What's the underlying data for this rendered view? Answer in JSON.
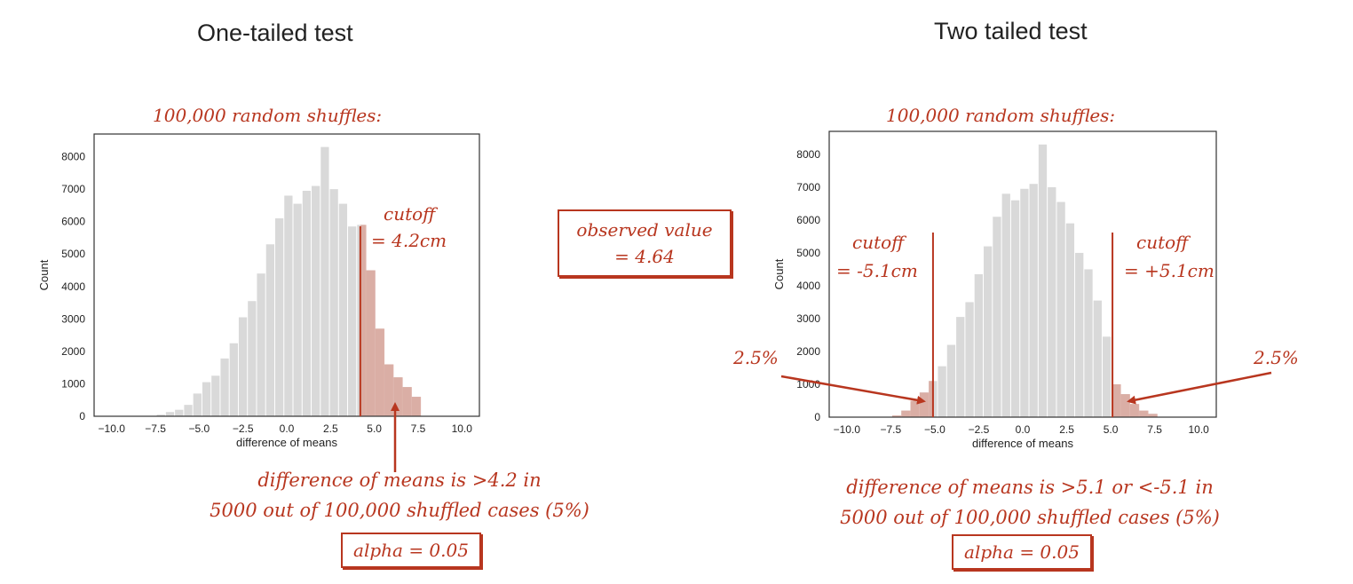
{
  "titles": {
    "left": "One-tailed test",
    "right": "Two tailed test"
  },
  "left_panel": {
    "subtitle": "100,000 random shuffles:",
    "caption_line1": "difference of means is >4.2 in",
    "caption_line2": "5000 out of 100,000 shuffled cases (5%)",
    "alpha": "alpha = 0.05",
    "cutoff_line1": "cutoff",
    "cutoff_line2": "= 4.2cm"
  },
  "observed": {
    "line1": "observed value",
    "line2": "= 4.64"
  },
  "right_panel": {
    "subtitle": "100,000 random shuffles:",
    "caption_line1": "difference of means is >5.1 or <-5.1 in",
    "caption_line2": "5000 out of 100,000 shuffled cases (5%)",
    "alpha": "alpha = 0.05",
    "cutoff_left_line1": "cutoff",
    "cutoff_left_line2": "= -5.1cm",
    "cutoff_right_line1": "cutoff",
    "cutoff_right_line2": "= +5.1cm",
    "pct_left": "2.5%",
    "pct_right": "2.5%"
  },
  "colors": {
    "accent": "#b8361f",
    "bar": "#d9d9d9",
    "shaded": "#d9a89e"
  },
  "chart_data": [
    {
      "type": "bar",
      "histogram": true,
      "xlabel": "difference of means",
      "ylabel": "Count",
      "xlim": [
        -11,
        11
      ],
      "ylim": [
        0,
        8700
      ],
      "xticks": [
        -10.0,
        -7.5,
        -5.0,
        -2.5,
        0.0,
        2.5,
        5.0,
        7.5,
        10.0
      ],
      "yticks": [
        0,
        1000,
        2000,
        3000,
        4000,
        5000,
        6000,
        7000,
        8000
      ],
      "bin_width": 0.52,
      "x": [
        -7.16,
        -6.64,
        -6.12,
        -5.6,
        -5.08,
        -4.56,
        -4.04,
        -3.52,
        -3.0,
        -2.48,
        -1.96,
        -1.44,
        -0.92,
        -0.4,
        0.12,
        0.64,
        1.16,
        1.68,
        2.2,
        2.72,
        3.24,
        3.76,
        4.28,
        4.8,
        5.32,
        5.84,
        6.36,
        6.88,
        7.4
      ],
      "values": [
        50,
        130,
        200,
        350,
        700,
        1050,
        1250,
        1780,
        2250,
        3050,
        3550,
        4400,
        5300,
        6100,
        6800,
        6550,
        6950,
        7100,
        8300,
        7000,
        6550,
        5850,
        5900,
        4500,
        2700,
        1600,
        1200,
        900,
        600
      ],
      "shaded_from": 4.2,
      "cutoffs": [
        4.2
      ]
    },
    {
      "type": "bar",
      "histogram": true,
      "xlabel": "difference of means",
      "ylabel": "Count",
      "xlim": [
        -11,
        11
      ],
      "ylim": [
        0,
        8700
      ],
      "xticks": [
        -10.0,
        -7.5,
        -5.0,
        -2.5,
        0.0,
        2.5,
        5.0,
        7.5,
        10.0
      ],
      "yticks": [
        0,
        1000,
        2000,
        3000,
        4000,
        5000,
        6000,
        7000,
        8000
      ],
      "bin_width": 0.52,
      "x": [
        -7.16,
        -6.64,
        -6.12,
        -5.6,
        -5.08,
        -4.56,
        -4.04,
        -3.52,
        -3.0,
        -2.48,
        -1.96,
        -1.44,
        -0.92,
        -0.4,
        0.12,
        0.64,
        1.16,
        1.68,
        2.2,
        2.72,
        3.24,
        3.76,
        4.28,
        4.8,
        5.32,
        5.84,
        6.36,
        6.88,
        7.4
      ],
      "values": [
        50,
        200,
        500,
        750,
        1100,
        1550,
        2200,
        3050,
        3500,
        4350,
        5200,
        6100,
        6800,
        6600,
        6950,
        7100,
        8300,
        7000,
        6550,
        5900,
        5000,
        4500,
        3550,
        2450,
        1000,
        700,
        400,
        200,
        100
      ],
      "shaded_below": -5.1,
      "shaded_above": 5.1,
      "cutoffs": [
        -5.1,
        5.1
      ]
    }
  ]
}
